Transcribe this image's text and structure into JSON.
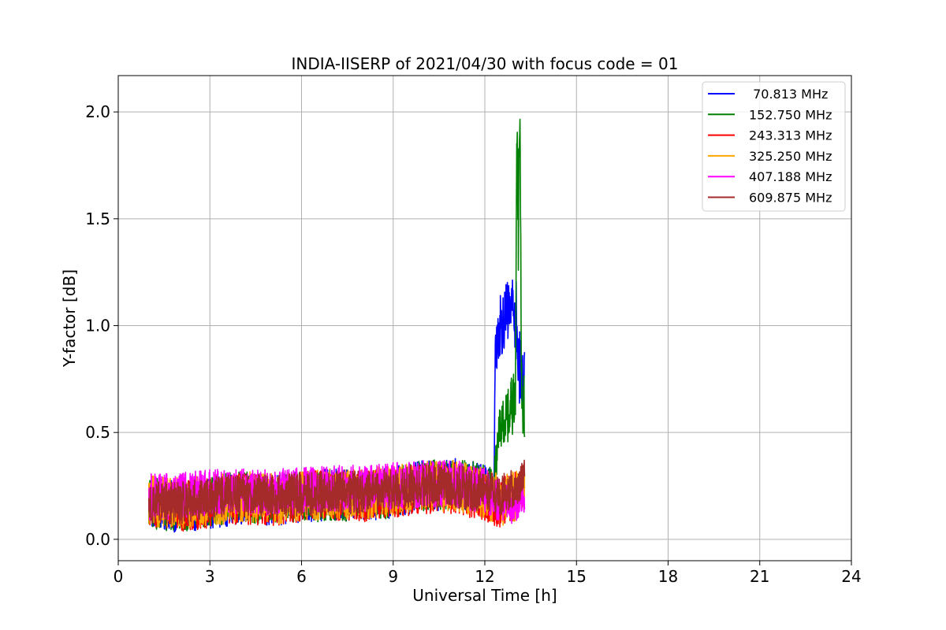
{
  "chart_data": {
    "type": "line",
    "title": "INDIA-IISERP of 2021/04/30 with focus code = 01",
    "xlabel": "Universal Time [h]",
    "ylabel": "Y-factor [dB]",
    "xlim": [
      0,
      24
    ],
    "ylim": [
      -0.1,
      2.17
    ],
    "xticks": [
      0,
      3,
      6,
      9,
      12,
      15,
      18,
      21,
      24
    ],
    "xtick_labels": [
      "0",
      "3",
      "6",
      "9",
      "12",
      "15",
      "18",
      "21",
      "24"
    ],
    "yticks": [
      0.0,
      0.5,
      1.0,
      1.5,
      2.0
    ],
    "ytick_labels": [
      "0.0",
      "0.5",
      "1.0",
      "1.5",
      "2.0"
    ],
    "grid": true,
    "legend_position": "top-right",
    "series": [
      {
        "name": " 70.813 MHz",
        "color": "#0000ff",
        "x": [
          1.0,
          2.0,
          3.0,
          4.0,
          5.0,
          6.0,
          7.0,
          8.0,
          9.0,
          10.0,
          11.0,
          12.0,
          12.3,
          12.35,
          12.5,
          12.7,
          12.9,
          13.0,
          13.1,
          13.2,
          13.3
        ],
        "y": [
          0.17,
          0.15,
          0.17,
          0.19,
          0.18,
          0.2,
          0.21,
          0.2,
          0.22,
          0.25,
          0.26,
          0.24,
          0.23,
          0.95,
          1.0,
          1.05,
          1.1,
          1.08,
          0.85,
          0.7,
          0.8
        ],
        "spread": [
          0.12,
          0.12,
          0.12,
          0.12,
          0.12,
          0.12,
          0.12,
          0.12,
          0.12,
          0.12,
          0.12,
          0.12,
          0.1,
          0.18,
          0.15,
          0.15,
          0.12,
          0.2,
          0.2,
          0.2,
          0.15
        ]
      },
      {
        "name": "152.750 MHz",
        "color": "#008000",
        "x": [
          1.0,
          2.0,
          3.0,
          4.0,
          5.0,
          6.0,
          7.0,
          8.0,
          9.0,
          10.0,
          11.0,
          12.0,
          12.3,
          12.4,
          12.6,
          12.8,
          13.0,
          13.05,
          13.1,
          13.15,
          13.2,
          13.3
        ],
        "y": [
          0.17,
          0.15,
          0.18,
          0.2,
          0.19,
          0.2,
          0.2,
          0.2,
          0.22,
          0.25,
          0.26,
          0.24,
          0.22,
          0.45,
          0.55,
          0.6,
          0.65,
          1.9,
          1.5,
          2.0,
          0.7,
          0.6
        ],
        "spread": [
          0.12,
          0.12,
          0.12,
          0.12,
          0.12,
          0.12,
          0.12,
          0.12,
          0.12,
          0.12,
          0.12,
          0.12,
          0.1,
          0.12,
          0.12,
          0.14,
          0.15,
          0.1,
          0.3,
          0.06,
          0.2,
          0.15
        ]
      },
      {
        "name": "243.313 MHz",
        "color": "#ff0000",
        "x": [
          1.0,
          2.0,
          3.0,
          4.0,
          5.0,
          6.0,
          7.0,
          8.0,
          9.0,
          10.0,
          11.0,
          12.0,
          12.5,
          13.0,
          13.3
        ],
        "y": [
          0.17,
          0.15,
          0.17,
          0.19,
          0.18,
          0.2,
          0.21,
          0.2,
          0.22,
          0.24,
          0.24,
          0.2,
          0.17,
          0.2,
          0.25
        ],
        "spread": [
          0.12,
          0.12,
          0.12,
          0.12,
          0.12,
          0.12,
          0.12,
          0.12,
          0.12,
          0.12,
          0.12,
          0.12,
          0.12,
          0.12,
          0.1
        ]
      },
      {
        "name": "325.250 MHz",
        "color": "#ffa500",
        "x": [
          1.0,
          2.0,
          3.0,
          4.0,
          5.0,
          6.0,
          7.0,
          8.0,
          9.0,
          10.0,
          11.0,
          12.0,
          12.5,
          13.0,
          13.3
        ],
        "y": [
          0.18,
          0.17,
          0.18,
          0.2,
          0.19,
          0.2,
          0.21,
          0.21,
          0.23,
          0.25,
          0.25,
          0.22,
          0.18,
          0.2,
          0.25
        ],
        "spread": [
          0.12,
          0.12,
          0.12,
          0.12,
          0.12,
          0.12,
          0.12,
          0.12,
          0.12,
          0.12,
          0.12,
          0.12,
          0.12,
          0.12,
          0.1
        ]
      },
      {
        "name": "407.188 MHz",
        "color": "#ff00ff",
        "x": [
          1.0,
          2.0,
          3.0,
          4.0,
          5.0,
          6.0,
          7.0,
          8.0,
          9.0,
          10.0,
          11.0,
          12.0,
          12.5,
          13.0,
          13.3
        ],
        "y": [
          0.2,
          0.2,
          0.22,
          0.23,
          0.22,
          0.23,
          0.24,
          0.24,
          0.25,
          0.26,
          0.26,
          0.23,
          0.18,
          0.15,
          0.2
        ],
        "spread": [
          0.11,
          0.11,
          0.11,
          0.11,
          0.11,
          0.11,
          0.11,
          0.11,
          0.11,
          0.11,
          0.11,
          0.11,
          0.1,
          0.08,
          0.08
        ]
      },
      {
        "name": "609.875 MHz",
        "color": "#a52a2a",
        "x": [
          1.0,
          2.0,
          3.0,
          4.0,
          5.0,
          6.0,
          7.0,
          8.0,
          9.0,
          10.0,
          11.0,
          12.0,
          12.5,
          13.0,
          13.3
        ],
        "y": [
          0.17,
          0.17,
          0.19,
          0.21,
          0.2,
          0.21,
          0.22,
          0.22,
          0.23,
          0.25,
          0.25,
          0.22,
          0.2,
          0.24,
          0.3
        ],
        "spread": [
          0.1,
          0.1,
          0.1,
          0.1,
          0.1,
          0.1,
          0.1,
          0.1,
          0.1,
          0.1,
          0.1,
          0.1,
          0.1,
          0.1,
          0.08
        ]
      }
    ]
  }
}
